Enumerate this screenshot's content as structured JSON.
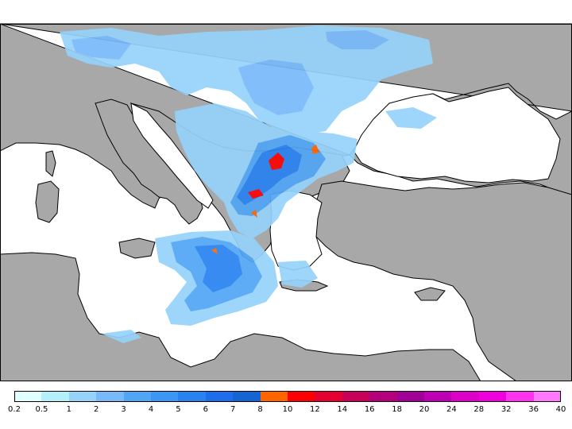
{
  "colors": {
    "land": "#a8a8a8",
    "sea": "#ffffff",
    "coast": "#000000",
    "border": "#000000"
  },
  "legend": {
    "labels": [
      "0.2",
      "0.5",
      "1",
      "2",
      "3",
      "4",
      "5",
      "6",
      "7",
      "8",
      "10",
      "12",
      "14",
      "16",
      "18",
      "20",
      "24",
      "28",
      "32",
      "36",
      "40"
    ],
    "colors": [
      "#e0ffff",
      "#b4f0fa",
      "#96d2fa",
      "#78b9fa",
      "#50a5f5",
      "#3c96f5",
      "#2882f0",
      "#1e6eeb",
      "#1464d2",
      "#ff6400",
      "#ff0000",
      "#e60032",
      "#c8005a",
      "#b4007d",
      "#a00096",
      "#be00b4",
      "#dc00c8",
      "#f000dc",
      "#ff32f0",
      "#ff78ff"
    ]
  }
}
